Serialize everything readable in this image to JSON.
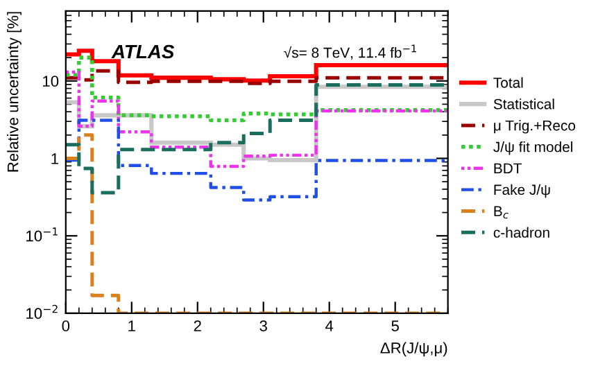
{
  "chart_data": {
    "type": "step",
    "xlabel": "ΔR(J/ψ,μ)",
    "ylabel": "Relative uncertainty [%]",
    "log": "y",
    "grid": false,
    "legend": "right",
    "x": [
      0,
      0.2,
      0.4,
      0.8,
      1.3,
      2.2,
      2.7,
      3.1,
      3.8,
      5.8
    ],
    "xlim": [
      0,
      5.8
    ],
    "xticks": [
      0,
      1,
      2,
      3,
      4,
      5
    ],
    "ylim": [
      0.01,
      80
    ],
    "yticks": [
      {
        "value": 0.01,
        "label": "10$^{−2}$"
      },
      {
        "value": 0.1,
        "label": "10$^{−1}$"
      },
      1,
      10
    ],
    "annotations": [
      "ATLAS",
      "√s= 8 TeV, 11.4 fb$^{−1}$"
    ],
    "series": [
      {
        "name": "Total",
        "color": "#ff0000",
        "line_style": "solid",
        "values": [
          22,
          24.5,
          18,
          11.8,
          11,
          10.5,
          10.1,
          11.5,
          16,
          16
        ]
      },
      {
        "name": "Statistical",
        "color": "#c8c8c8",
        "line_style": "solid",
        "values": [
          5.3,
          2.6,
          3.6,
          3.6,
          1.6,
          1.5,
          1.0,
          0.95,
          8.4,
          8.4
        ]
      },
      {
        "name": "μ Trig.+Reco",
        "color": "#990000",
        "line_style": "dashed",
        "values": [
          11,
          10.3,
          13.5,
          9.6,
          9.9,
          9.9,
          9.3,
          9.9,
          11,
          11
        ]
      },
      {
        "name": "J/ψ fit model",
        "color": "#33cc33",
        "line_style": "dotted",
        "values": [
          12,
          20,
          6.1,
          3.6,
          3.5,
          3.1,
          3.8,
          3.7,
          4.2,
          4.2
        ]
      },
      {
        "name": "BDT",
        "color": "#ee33ee",
        "line_style": "dashdotdot",
        "values": [
          13,
          2.6,
          5.5,
          2.2,
          1.4,
          0.79,
          1.07,
          1.1,
          4.1,
          4.1
        ]
      },
      {
        "name": "Fake J/ψ",
        "color": "#1f4fe6",
        "line_style": "dashdot",
        "values": [
          0.95,
          3.1,
          3.1,
          0.81,
          0.64,
          0.42,
          0.29,
          0.32,
          0.94,
          0.94
        ]
      },
      {
        "name": "B$_{c}$",
        "color": "#d98020",
        "line_style": "dashed",
        "values": [
          1.0,
          2.0,
          0.017,
          0.01,
          0.01,
          0.01,
          0.01,
          0.01,
          0.01,
          0.01
        ]
      },
      {
        "name": "c-hadron",
        "color": "#1a6e5e",
        "line_style": "dashed",
        "values": [
          1.5,
          0.74,
          0.36,
          1.3,
          1.3,
          1.6,
          2.1,
          3.1,
          8.9,
          8.9
        ]
      }
    ]
  }
}
